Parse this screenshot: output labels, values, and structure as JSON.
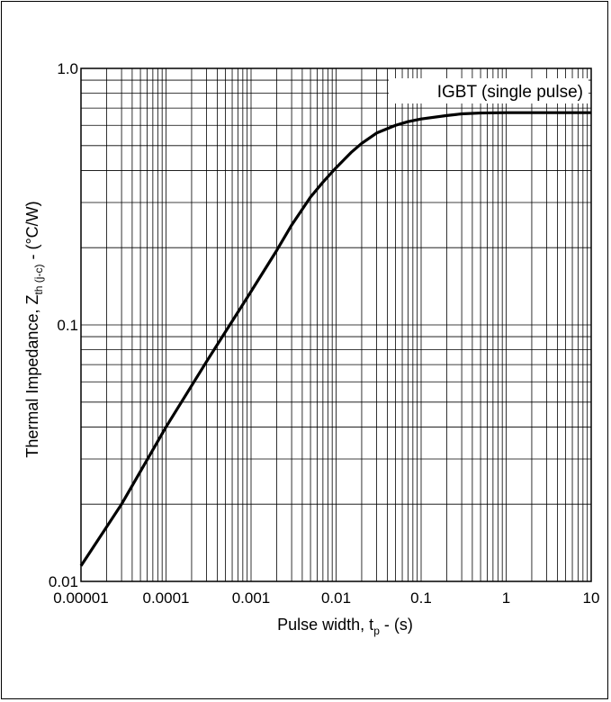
{
  "chart_data": {
    "type": "line",
    "title": "",
    "xlabel_main": "Pulse width, t",
    "xlabel_sub": "p",
    "xlabel_tail": " - (s)",
    "ylabel_main": "Thermal Impedance, Z",
    "ylabel_sub": "th (j-c)",
    "ylabel_tail": " - (°C/W)",
    "x_scale": "log",
    "y_scale": "log",
    "xlim": [
      1e-05,
      10
    ],
    "ylim": [
      0.01,
      1.0
    ],
    "grid": true,
    "x_ticks": [
      1e-05,
      0.0001,
      0.001,
      0.01,
      0.1,
      1,
      10
    ],
    "x_tick_labels": [
      "0.00001",
      "0.0001",
      "0.001",
      "0.01",
      "0.1",
      "1",
      "10"
    ],
    "y_ticks": [
      0.01,
      0.1,
      1.0
    ],
    "y_tick_labels": [
      "0.01",
      "0.1",
      "1.0"
    ],
    "legend_position": "top-right",
    "series": [
      {
        "name": "IGBT (single pulse)",
        "x": [
          1e-05,
          3e-05,
          0.0001,
          0.0003,
          0.001,
          0.002,
          0.003,
          0.005,
          0.007,
          0.01,
          0.015,
          0.02,
          0.03,
          0.05,
          0.07,
          0.1,
          0.2,
          0.3,
          0.5,
          1,
          2,
          5,
          10
        ],
        "y": [
          0.0115,
          0.02,
          0.04,
          0.072,
          0.135,
          0.195,
          0.245,
          0.315,
          0.36,
          0.41,
          0.47,
          0.51,
          0.56,
          0.6,
          0.62,
          0.635,
          0.655,
          0.665,
          0.67,
          0.672,
          0.672,
          0.672,
          0.672
        ]
      }
    ]
  }
}
